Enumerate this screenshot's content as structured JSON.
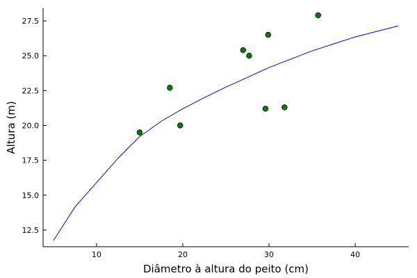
{
  "chart_data": {
    "type": "scatter",
    "title": "",
    "xlabel": "Diâmetro à altura do peito (cm)",
    "ylabel": "Altura (m)",
    "xlim": [
      3.8,
      46.2
    ],
    "ylim": [
      11.3,
      28.4
    ],
    "x_ticks": [
      10,
      20,
      30,
      40
    ],
    "y_ticks": [
      12.5,
      15.0,
      17.5,
      20.0,
      22.5,
      25.0,
      27.5
    ],
    "x_tick_labels": [
      "10",
      "20",
      "30",
      "40"
    ],
    "y_tick_labels": [
      "12.5",
      "15.0",
      "17.5",
      "20.0",
      "22.5",
      "25.0",
      "27.5"
    ],
    "grid": false,
    "legend": "none",
    "series": [
      {
        "kind": "scatter",
        "color": "#008000",
        "points": [
          {
            "x": 15.0,
            "y": 19.5
          },
          {
            "x": 18.5,
            "y": 22.7
          },
          {
            "x": 19.7,
            "y": 20.0
          },
          {
            "x": 27.0,
            "y": 25.4
          },
          {
            "x": 27.7,
            "y": 25.0
          },
          {
            "x": 29.6,
            "y": 21.2
          },
          {
            "x": 29.9,
            "y": 26.5
          },
          {
            "x": 31.8,
            "y": 21.3
          },
          {
            "x": 35.7,
            "y": 27.9
          }
        ]
      },
      {
        "kind": "line",
        "color": "#0000ff",
        "points": [
          {
            "x": 5,
            "y": 11.75
          },
          {
            "x": 7.5,
            "y": 14.15
          },
          {
            "x": 10,
            "y": 15.9
          },
          {
            "x": 12.5,
            "y": 17.65
          },
          {
            "x": 15,
            "y": 19.2
          },
          {
            "x": 17.5,
            "y": 20.3
          },
          {
            "x": 20,
            "y": 21.2
          },
          {
            "x": 22.5,
            "y": 22.0
          },
          {
            "x": 25,
            "y": 22.75
          },
          {
            "x": 27.5,
            "y": 23.45
          },
          {
            "x": 30,
            "y": 24.15
          },
          {
            "x": 32.5,
            "y": 24.75
          },
          {
            "x": 35,
            "y": 25.35
          },
          {
            "x": 37.5,
            "y": 25.85
          },
          {
            "x": 40,
            "y": 26.35
          },
          {
            "x": 42.5,
            "y": 26.75
          },
          {
            "x": 45,
            "y": 27.15
          }
        ]
      }
    ]
  }
}
